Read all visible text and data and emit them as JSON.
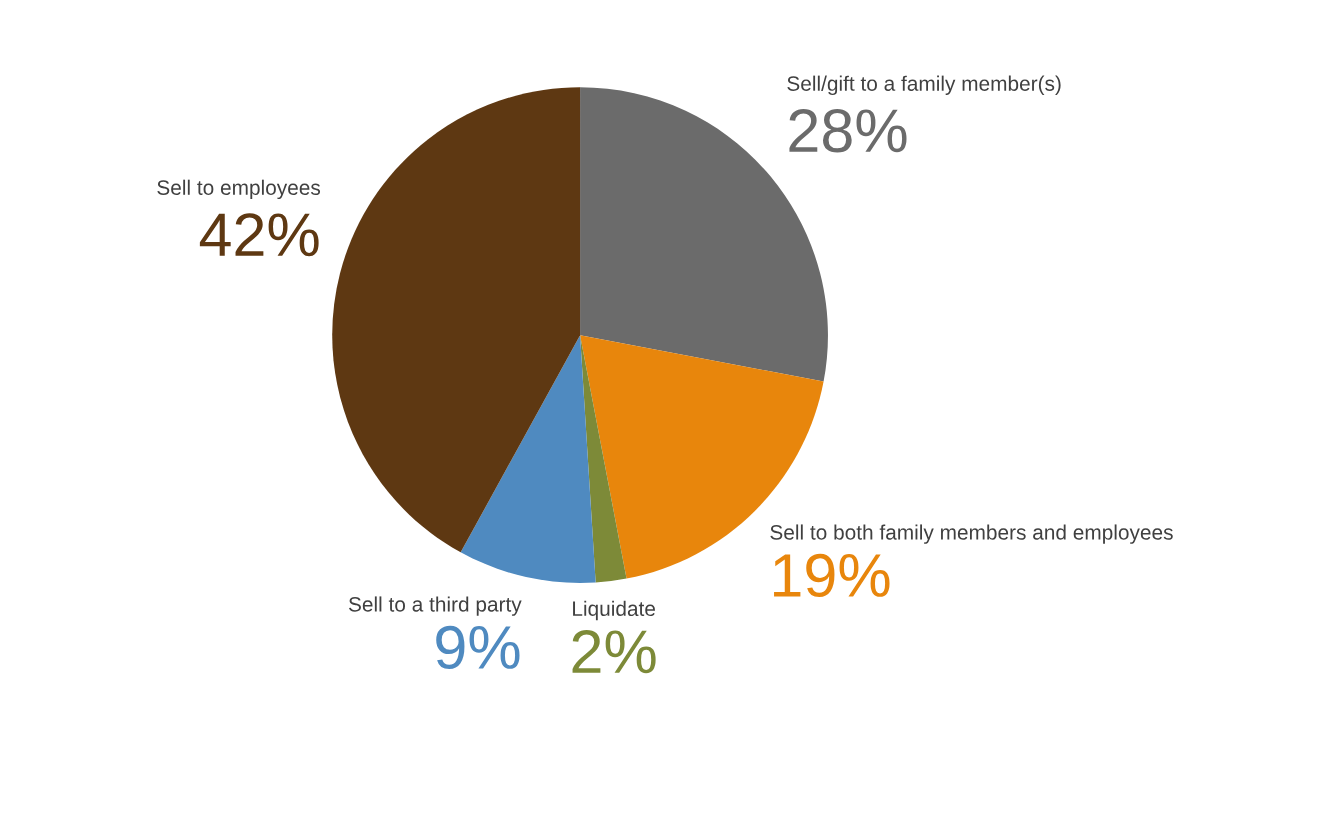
{
  "chart_data": {
    "type": "pie",
    "categories": [
      "Sell/gift to a family member(s)",
      "Sell to both family members and employees",
      "Liquidate",
      "Sell to a third party",
      "Sell to employees"
    ],
    "values": [
      28,
      19,
      2,
      9,
      42
    ],
    "colors": [
      "#6b6b6b",
      "#e8860c",
      "#7d8a38",
      "#4f8ac0",
      "#5e3812"
    ],
    "value_labels": [
      "28%",
      "19%",
      "2%",
      "9%",
      "42%"
    ]
  }
}
